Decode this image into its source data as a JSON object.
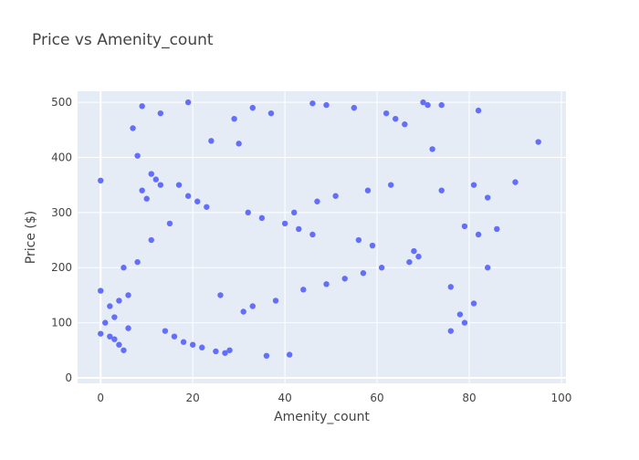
{
  "chart_data": {
    "type": "scatter",
    "title": "Price vs Amenity_count",
    "xlabel": "Amenity_count",
    "ylabel": "Price ($)",
    "xlim": [
      -5,
      101
    ],
    "ylim": [
      -10,
      520
    ],
    "xticks": [
      0,
      20,
      40,
      60,
      80,
      100
    ],
    "yticks": [
      0,
      100,
      200,
      300,
      400,
      500
    ],
    "grid": true,
    "colors": {
      "marker": "#636efa",
      "plot_bg": "#e5ecf6",
      "grid": "#ffffff",
      "zeroline": "#ffffff",
      "text": "#444444"
    },
    "series": [
      {
        "x": [
          0,
          0,
          0,
          9,
          13,
          19,
          70,
          71,
          82,
          95,
          90,
          84,
          86,
          81,
          82,
          81,
          79,
          76,
          78,
          74,
          72,
          84,
          76,
          79,
          74,
          7,
          8,
          10,
          11,
          12,
          17,
          24,
          29,
          30,
          33,
          37,
          46,
          49,
          55,
          62,
          64,
          66,
          3,
          4,
          5,
          6,
          14,
          16,
          18,
          20,
          22,
          25,
          27,
          28,
          36,
          41,
          2,
          1,
          3,
          5,
          8,
          11,
          15,
          42,
          47,
          51,
          58,
          63,
          26,
          31,
          33,
          38,
          44,
          49,
          53,
          57,
          61,
          67,
          69,
          68,
          59,
          56,
          46,
          43,
          40,
          35,
          32,
          23,
          21,
          19,
          9,
          13,
          6,
          4,
          2
        ],
        "y": [
          358,
          158,
          80,
          493,
          480,
          500,
          500,
          495,
          485,
          428,
          355,
          327,
          270,
          135,
          260,
          350,
          275,
          165,
          115,
          495,
          415,
          200,
          85,
          100,
          340,
          453,
          403,
          325,
          370,
          360,
          350,
          430,
          470,
          425,
          490,
          480,
          498,
          495,
          490,
          480,
          470,
          460,
          70,
          60,
          50,
          90,
          85,
          75,
          65,
          60,
          55,
          48,
          45,
          50,
          40,
          42,
          75,
          100,
          110,
          200,
          210,
          250,
          280,
          300,
          320,
          330,
          340,
          350,
          150,
          120,
          130,
          140,
          160,
          170,
          180,
          190,
          200,
          210,
          220,
          230,
          240,
          250,
          260,
          270,
          280,
          290,
          300,
          310,
          320,
          330,
          340,
          350,
          150,
          140,
          130
        ]
      }
    ]
  }
}
